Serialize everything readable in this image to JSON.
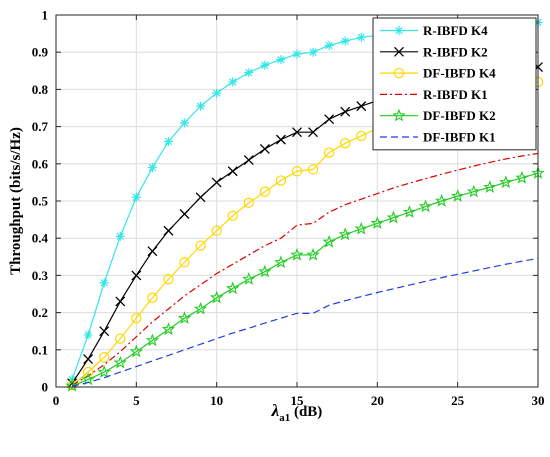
{
  "chart_data": {
    "type": "line",
    "xlabel": "λ",
    "xlabel_sub": "a1",
    "xlabel_unit": " (dB)",
    "ylabel": "Throughput (bits/s/Hz)",
    "xlim": [
      0,
      30
    ],
    "ylim": [
      0,
      1
    ],
    "xticks": [
      0,
      5,
      10,
      15,
      20,
      25,
      30
    ],
    "yticks": [
      0,
      0.1,
      0.2,
      0.3,
      0.4,
      0.5,
      0.6,
      0.7,
      0.8,
      0.9,
      1
    ],
    "grid": true,
    "legend_position": "top-right",
    "x": [
      1,
      2,
      3,
      4,
      5,
      6,
      7,
      8,
      9,
      10,
      11,
      12,
      13,
      14,
      15,
      16,
      17,
      18,
      19,
      20,
      21,
      22,
      23,
      24,
      25,
      26,
      27,
      28,
      29,
      30
    ],
    "series": [
      {
        "name": "R-IBFD K4",
        "color": "#33e6e6",
        "dash": "solid",
        "marker": "asterisk",
        "values": [
          0.02,
          0.14,
          0.28,
          0.405,
          0.51,
          0.59,
          0.66,
          0.71,
          0.755,
          0.79,
          0.82,
          0.845,
          0.865,
          0.88,
          0.895,
          0.9,
          0.918,
          0.93,
          0.94,
          0.945,
          0.95,
          0.955,
          0.96,
          0.963,
          0.966,
          0.969,
          0.972,
          0.975,
          0.977,
          0.98
        ]
      },
      {
        "name": "R-IBFD K2",
        "color": "#000000",
        "dash": "solid",
        "marker": "x",
        "values": [
          0.01,
          0.075,
          0.15,
          0.23,
          0.3,
          0.365,
          0.42,
          0.465,
          0.51,
          0.55,
          0.58,
          0.61,
          0.64,
          0.665,
          0.685,
          0.685,
          0.72,
          0.74,
          0.755,
          0.77,
          0.78,
          0.79,
          0.8,
          0.81,
          0.82,
          0.83,
          0.838,
          0.845,
          0.852,
          0.86
        ]
      },
      {
        "name": "DF-IBFD K4",
        "color": "#ffd700",
        "dash": "solid",
        "marker": "circle",
        "values": [
          0.005,
          0.04,
          0.08,
          0.13,
          0.185,
          0.24,
          0.29,
          0.335,
          0.38,
          0.42,
          0.46,
          0.495,
          0.525,
          0.555,
          0.58,
          0.585,
          0.63,
          0.655,
          0.675,
          0.695,
          0.71,
          0.725,
          0.74,
          0.755,
          0.765,
          0.775,
          0.785,
          0.795,
          0.81,
          0.82
        ]
      },
      {
        "name": "R-IBFD K1",
        "color": "#e00000",
        "dash": "dashdot",
        "marker": "none",
        "values": [
          0.005,
          0.03,
          0.06,
          0.095,
          0.135,
          0.175,
          0.21,
          0.245,
          0.275,
          0.305,
          0.33,
          0.355,
          0.38,
          0.4,
          0.435,
          0.44,
          0.47,
          0.49,
          0.505,
          0.52,
          0.535,
          0.548,
          0.56,
          0.572,
          0.583,
          0.594,
          0.604,
          0.613,
          0.621,
          0.628
        ]
      },
      {
        "name": "DF-IBFD K2",
        "color": "#22cc22",
        "dash": "solid",
        "marker": "star",
        "values": [
          0.003,
          0.02,
          0.04,
          0.065,
          0.095,
          0.125,
          0.155,
          0.185,
          0.21,
          0.24,
          0.265,
          0.29,
          0.31,
          0.335,
          0.355,
          0.355,
          0.39,
          0.41,
          0.425,
          0.44,
          0.455,
          0.47,
          0.485,
          0.5,
          0.513,
          0.525,
          0.537,
          0.55,
          0.562,
          0.575
        ]
      },
      {
        "name": "DF-IBFD K1",
        "color": "#1f3fe0",
        "dash": "dashed",
        "marker": "none",
        "values": [
          0.002,
          0.012,
          0.025,
          0.04,
          0.055,
          0.07,
          0.085,
          0.1,
          0.115,
          0.13,
          0.145,
          0.158,
          0.172,
          0.185,
          0.198,
          0.198,
          0.22,
          0.232,
          0.243,
          0.254,
          0.264,
          0.274,
          0.284,
          0.294,
          0.303,
          0.312,
          0.321,
          0.33,
          0.338,
          0.346
        ]
      }
    ]
  }
}
